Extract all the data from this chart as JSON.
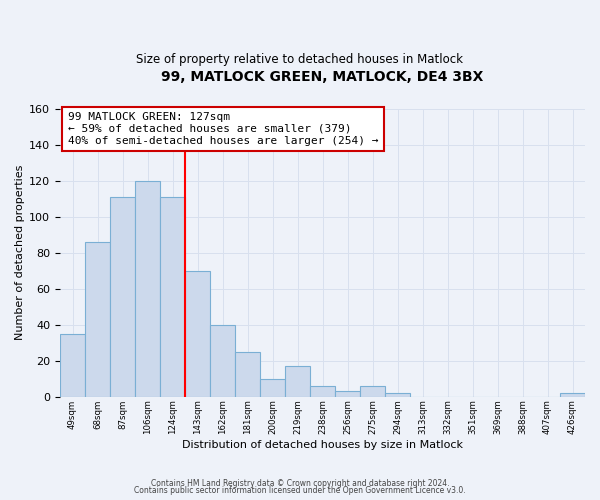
{
  "title": "99, MATLOCK GREEN, MATLOCK, DE4 3BX",
  "subtitle": "Size of property relative to detached houses in Matlock",
  "xlabel": "Distribution of detached houses by size in Matlock",
  "ylabel": "Number of detached properties",
  "bin_labels": [
    "49sqm",
    "68sqm",
    "87sqm",
    "106sqm",
    "124sqm",
    "143sqm",
    "162sqm",
    "181sqm",
    "200sqm",
    "219sqm",
    "238sqm",
    "256sqm",
    "275sqm",
    "294sqm",
    "313sqm",
    "332sqm",
    "351sqm",
    "369sqm",
    "388sqm",
    "407sqm",
    "426sqm"
  ],
  "bar_values": [
    35,
    86,
    111,
    120,
    111,
    70,
    40,
    25,
    10,
    17,
    6,
    3,
    6,
    2,
    0,
    0,
    0,
    0,
    0,
    0,
    2
  ],
  "bar_color": "#ccd9ec",
  "bar_edge_color": "#7aafd4",
  "ylim": [
    0,
    160
  ],
  "yticks": [
    0,
    20,
    40,
    60,
    80,
    100,
    120,
    140,
    160
  ],
  "red_line_bin_index": 4,
  "annotation_line0": "99 MATLOCK GREEN: 127sqm",
  "annotation_line1": "← 59% of detached houses are smaller (379)",
  "annotation_line2": "40% of semi-detached houses are larger (254) →",
  "annotation_box_edge": "#cc0000",
  "footer_line1": "Contains HM Land Registry data © Crown copyright and database right 2024.",
  "footer_line2": "Contains public sector information licensed under the Open Government Licence v3.0.",
  "bg_color": "#eef2f9",
  "grid_color": "#d8e0ee"
}
